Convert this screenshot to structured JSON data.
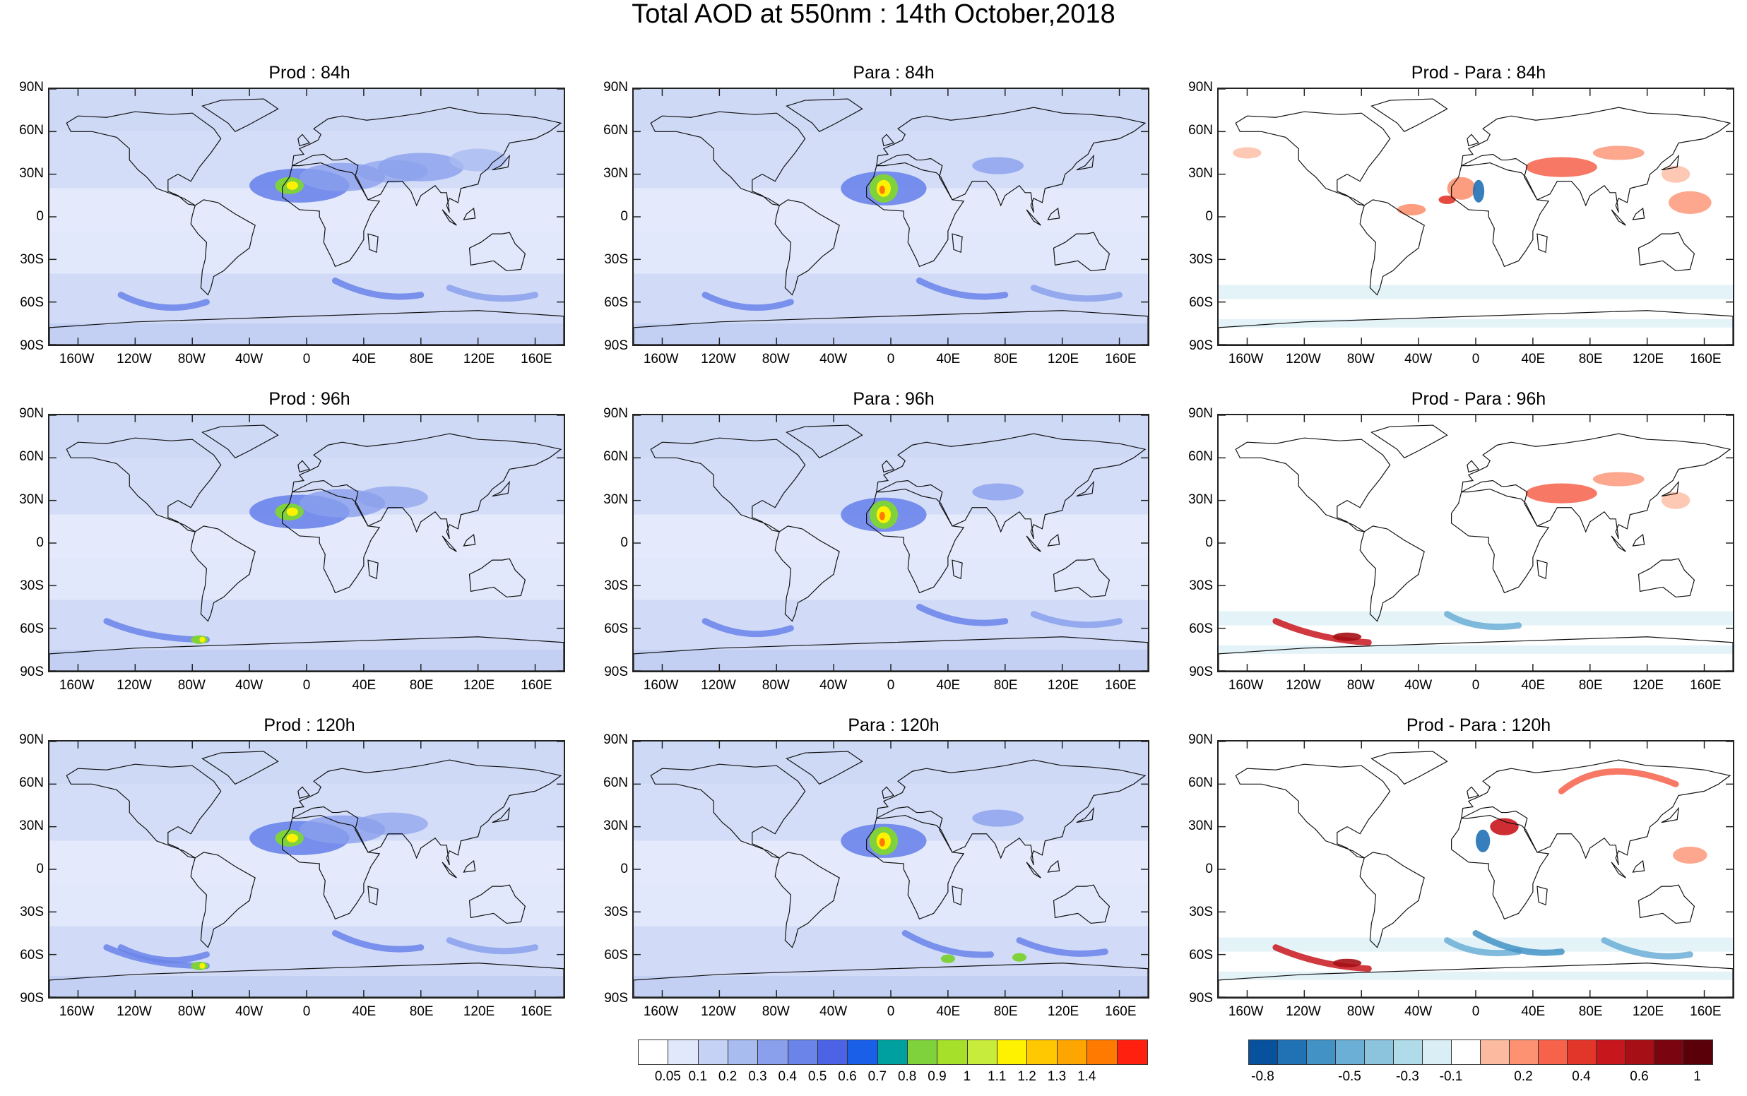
{
  "title": "Total AOD at 550nm : 14th October,2018",
  "panels": [
    {
      "title": "Prod : 84h",
      "kind": "aod",
      "hotspots": [
        "saharan-dust",
        "asia-dust",
        "southern-ocean"
      ]
    },
    {
      "title": "Para : 84h",
      "kind": "aod",
      "hotspots": [
        "saharan-dust-strong",
        "southern-ocean"
      ]
    },
    {
      "title": "Prod - Para : 84h",
      "kind": "diff",
      "hotspots": [
        "africa-mixed",
        "asia-positive",
        "pacific-positive"
      ]
    },
    {
      "title": "Prod : 96h",
      "kind": "aod",
      "hotspots": [
        "saharan-dust",
        "patagonia-plume"
      ]
    },
    {
      "title": "Para : 96h",
      "kind": "aod",
      "hotspots": [
        "saharan-dust-strong",
        "southern-ocean"
      ]
    },
    {
      "title": "Prod - Para : 96h",
      "kind": "diff",
      "hotspots": [
        "patagonia-positive",
        "asia-positive"
      ]
    },
    {
      "title": "Prod : 120h",
      "kind": "aod",
      "hotspots": [
        "saharan-dust",
        "patagonia-plume",
        "southern-ocean"
      ]
    },
    {
      "title": "Para : 120h",
      "kind": "aod",
      "hotspots": [
        "saharan-dust-strong",
        "southern-ocean-plumes"
      ]
    },
    {
      "title": "Prod - Para : 120h",
      "kind": "diff",
      "hotspots": [
        "patagonia-positive",
        "siberia-positive",
        "south-atlantic-negative"
      ]
    }
  ],
  "lat_labels": [
    "90N",
    "60N",
    "30N",
    "0",
    "30S",
    "60S",
    "90S"
  ],
  "lon_labels": [
    "160W",
    "120W",
    "80W",
    "40W",
    "0",
    "40E",
    "80E",
    "120E",
    "160E"
  ],
  "aod_colorbar": {
    "colors": [
      "#ffffff",
      "#e1e8fb",
      "#c5d2f5",
      "#a9bcf0",
      "#8aa0ec",
      "#6a84ea",
      "#4d63e6",
      "#1a5fe8",
      "#00a0a0",
      "#7fd23c",
      "#a6e02a",
      "#c8ec3c",
      "#fff200",
      "#ffc800",
      "#ffa500",
      "#ff7a00",
      "#ff2010"
    ],
    "labels": [
      "0.05",
      "0.1",
      "0.2",
      "0.3",
      "0.4",
      "0.5",
      "0.6",
      "0.7",
      "0.8",
      "0.9",
      "1",
      "1.1",
      "1.2",
      "1.3",
      "1.4"
    ]
  },
  "diff_colorbar": {
    "colors": [
      "#08519c",
      "#2171b5",
      "#4292c6",
      "#6baed6",
      "#8cc4dd",
      "#b0dbe8",
      "#d9eef5",
      "#ffffff",
      "#fcbba1",
      "#fc9272",
      "#f6624a",
      "#e3362a",
      "#c8161d",
      "#a50f15",
      "#7a0510",
      "#5a0008"
    ],
    "labels": [
      "-0.8",
      "-0.5",
      "-0.3",
      "-0.1",
      "0.2",
      "0.4",
      "0.6",
      "1"
    ]
  }
}
